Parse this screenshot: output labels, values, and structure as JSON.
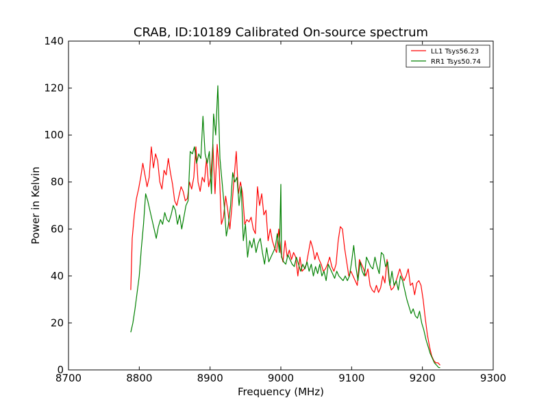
{
  "chart_data": {
    "type": "line",
    "title": "CRAB, ID:10189 Calibrated On-source spectrum",
    "xlabel": "Frequency (MHz)",
    "ylabel": "Power in Kelvin",
    "xlim": [
      8700,
      9300
    ],
    "ylim": [
      0,
      140
    ],
    "xticks": [
      8700,
      8800,
      8900,
      9000,
      9100,
      9200,
      9300
    ],
    "yticks": [
      0,
      20,
      40,
      60,
      80,
      100,
      120,
      140
    ],
    "grid": false,
    "legend_position": "top-right",
    "series": [
      {
        "name": "LL1 Tsys56.23",
        "color": "#ff0000",
        "points": [
          [
            8788,
            34
          ],
          [
            8790,
            56
          ],
          [
            8793,
            66
          ],
          [
            8796,
            73
          ],
          [
            8799,
            77
          ],
          [
            8802,
            82
          ],
          [
            8805,
            88
          ],
          [
            8808,
            83
          ],
          [
            8811,
            78
          ],
          [
            8814,
            82
          ],
          [
            8817,
            95
          ],
          [
            8820,
            86
          ],
          [
            8823,
            92
          ],
          [
            8826,
            89
          ],
          [
            8829,
            80
          ],
          [
            8832,
            77
          ],
          [
            8835,
            85
          ],
          [
            8838,
            83
          ],
          [
            8841,
            90
          ],
          [
            8844,
            84
          ],
          [
            8847,
            79
          ],
          [
            8850,
            72
          ],
          [
            8853,
            70
          ],
          [
            8856,
            74
          ],
          [
            8859,
            78
          ],
          [
            8862,
            76
          ],
          [
            8865,
            72
          ],
          [
            8868,
            73
          ],
          [
            8871,
            80
          ],
          [
            8874,
            77
          ],
          [
            8877,
            82
          ],
          [
            8880,
            95
          ],
          [
            8883,
            80
          ],
          [
            8886,
            76
          ],
          [
            8889,
            82
          ],
          [
            8892,
            80
          ],
          [
            8895,
            90
          ],
          [
            8898,
            78
          ],
          [
            8901,
            82
          ],
          [
            8904,
            96
          ],
          [
            8907,
            75
          ],
          [
            8910,
            96
          ],
          [
            8913,
            85
          ],
          [
            8916,
            62
          ],
          [
            8919,
            65
          ],
          [
            8922,
            74
          ],
          [
            8925,
            68
          ],
          [
            8928,
            60
          ],
          [
            8931,
            70
          ],
          [
            8934,
            82
          ],
          [
            8937,
            93
          ],
          [
            8940,
            75
          ],
          [
            8943,
            80
          ],
          [
            8946,
            75
          ],
          [
            8949,
            62
          ],
          [
            8952,
            64
          ],
          [
            8955,
            63
          ],
          [
            8958,
            65
          ],
          [
            8961,
            60
          ],
          [
            8964,
            58
          ],
          [
            8967,
            78
          ],
          [
            8970,
            70
          ],
          [
            8973,
            75
          ],
          [
            8976,
            66
          ],
          [
            8979,
            68
          ],
          [
            8982,
            55
          ],
          [
            8985,
            60
          ],
          [
            8988,
            55
          ],
          [
            8991,
            52
          ],
          [
            8994,
            50
          ],
          [
            8997,
            60
          ],
          [
            9000,
            50
          ],
          [
            9003,
            46
          ],
          [
            9006,
            55
          ],
          [
            9009,
            48
          ],
          [
            9012,
            51
          ],
          [
            9015,
            47
          ],
          [
            9018,
            50
          ],
          [
            9021,
            48
          ],
          [
            9024,
            40
          ],
          [
            9027,
            48
          ],
          [
            9030,
            42
          ],
          [
            9033,
            43
          ],
          [
            9036,
            45
          ],
          [
            9039,
            50
          ],
          [
            9042,
            55
          ],
          [
            9045,
            52
          ],
          [
            9048,
            47
          ],
          [
            9051,
            50
          ],
          [
            9054,
            47
          ],
          [
            9057,
            45
          ],
          [
            9060,
            42
          ],
          [
            9063,
            43
          ],
          [
            9066,
            45
          ],
          [
            9069,
            48
          ],
          [
            9072,
            44
          ],
          [
            9075,
            42
          ],
          [
            9078,
            45
          ],
          [
            9081,
            55
          ],
          [
            9084,
            61
          ],
          [
            9087,
            60
          ],
          [
            9090,
            52
          ],
          [
            9093,
            46
          ],
          [
            9096,
            40
          ],
          [
            9099,
            42
          ],
          [
            9102,
            40
          ],
          [
            9105,
            38
          ],
          [
            9108,
            36
          ],
          [
            9111,
            47
          ],
          [
            9114,
            45
          ],
          [
            9117,
            43
          ],
          [
            9120,
            40
          ],
          [
            9123,
            43
          ],
          [
            9126,
            36
          ],
          [
            9129,
            34
          ],
          [
            9132,
            33
          ],
          [
            9135,
            36
          ],
          [
            9138,
            33
          ],
          [
            9141,
            35
          ],
          [
            9144,
            40
          ],
          [
            9147,
            37
          ],
          [
            9150,
            47
          ],
          [
            9153,
            38
          ],
          [
            9156,
            34
          ],
          [
            9159,
            35
          ],
          [
            9162,
            37
          ],
          [
            9165,
            40
          ],
          [
            9168,
            43
          ],
          [
            9171,
            40
          ],
          [
            9174,
            38
          ],
          [
            9177,
            40
          ],
          [
            9180,
            43
          ],
          [
            9183,
            36
          ],
          [
            9186,
            37
          ],
          [
            9189,
            32
          ],
          [
            9192,
            37
          ],
          [
            9195,
            38
          ],
          [
            9198,
            36
          ],
          [
            9201,
            30
          ],
          [
            9204,
            22
          ],
          [
            9207,
            15
          ],
          [
            9210,
            10
          ],
          [
            9213,
            6
          ],
          [
            9216,
            4
          ],
          [
            9219,
            3
          ],
          [
            9222,
            3
          ],
          [
            9225,
            2
          ]
        ]
      },
      {
        "name": "RR1 Tsys50.74",
        "color": "#008000",
        "points": [
          [
            8788,
            16
          ],
          [
            8791,
            20
          ],
          [
            8794,
            26
          ],
          [
            8797,
            33
          ],
          [
            8800,
            40
          ],
          [
            8803,
            52
          ],
          [
            8806,
            62
          ],
          [
            8809,
            75
          ],
          [
            8812,
            72
          ],
          [
            8815,
            68
          ],
          [
            8818,
            64
          ],
          [
            8821,
            60
          ],
          [
            8824,
            56
          ],
          [
            8827,
            61
          ],
          [
            8830,
            64
          ],
          [
            8833,
            62
          ],
          [
            8836,
            67
          ],
          [
            8839,
            64
          ],
          [
            8842,
            63
          ],
          [
            8845,
            66
          ],
          [
            8848,
            70
          ],
          [
            8851,
            68
          ],
          [
            8854,
            62
          ],
          [
            8857,
            66
          ],
          [
            8860,
            60
          ],
          [
            8863,
            65
          ],
          [
            8866,
            70
          ],
          [
            8869,
            72
          ],
          [
            8872,
            93
          ],
          [
            8875,
            92
          ],
          [
            8878,
            95
          ],
          [
            8881,
            88
          ],
          [
            8884,
            92
          ],
          [
            8887,
            90
          ],
          [
            8890,
            108
          ],
          [
            8893,
            92
          ],
          [
            8896,
            88
          ],
          [
            8899,
            93
          ],
          [
            8902,
            75
          ],
          [
            8905,
            109
          ],
          [
            8908,
            100
          ],
          [
            8911,
            121
          ],
          [
            8914,
            90
          ],
          [
            8917,
            80
          ],
          [
            8920,
            70
          ],
          [
            8923,
            57
          ],
          [
            8926,
            62
          ],
          [
            8929,
            70
          ],
          [
            8932,
            84
          ],
          [
            8935,
            80
          ],
          [
            8938,
            82
          ],
          [
            8941,
            70
          ],
          [
            8944,
            78
          ],
          [
            8947,
            55
          ],
          [
            8950,
            62
          ],
          [
            8953,
            48
          ],
          [
            8956,
            55
          ],
          [
            8959,
            52
          ],
          [
            8962,
            56
          ],
          [
            8965,
            50
          ],
          [
            8968,
            54
          ],
          [
            8971,
            56
          ],
          [
            8974,
            50
          ],
          [
            8977,
            45
          ],
          [
            8980,
            52
          ],
          [
            8983,
            46
          ],
          [
            8986,
            48
          ],
          [
            8989,
            50
          ],
          [
            8992,
            52
          ],
          [
            8995,
            58
          ],
          [
            8998,
            50
          ],
          [
            9000,
            79
          ],
          [
            9001,
            48
          ],
          [
            9004,
            46
          ],
          [
            9007,
            45
          ],
          [
            9010,
            49
          ],
          [
            9013,
            47
          ],
          [
            9016,
            45
          ],
          [
            9019,
            44
          ],
          [
            9022,
            48
          ],
          [
            9025,
            45
          ],
          [
            9028,
            42
          ],
          [
            9031,
            45
          ],
          [
            9034,
            43
          ],
          [
            9037,
            46
          ],
          [
            9040,
            42
          ],
          [
            9043,
            45
          ],
          [
            9046,
            40
          ],
          [
            9049,
            44
          ],
          [
            9052,
            41
          ],
          [
            9055,
            45
          ],
          [
            9058,
            40
          ],
          [
            9061,
            42
          ],
          [
            9064,
            38
          ],
          [
            9067,
            45
          ],
          [
            9070,
            43
          ],
          [
            9073,
            41
          ],
          [
            9076,
            39
          ],
          [
            9079,
            42
          ],
          [
            9082,
            40
          ],
          [
            9085,
            39
          ],
          [
            9088,
            38
          ],
          [
            9091,
            40
          ],
          [
            9094,
            38
          ],
          [
            9097,
            40
          ],
          [
            9100,
            46
          ],
          [
            9103,
            53
          ],
          [
            9106,
            44
          ],
          [
            9109,
            38
          ],
          [
            9112,
            46
          ],
          [
            9115,
            42
          ],
          [
            9118,
            40
          ],
          [
            9121,
            48
          ],
          [
            9124,
            46
          ],
          [
            9127,
            44
          ],
          [
            9130,
            43
          ],
          [
            9133,
            48
          ],
          [
            9136,
            44
          ],
          [
            9139,
            41
          ],
          [
            9142,
            50
          ],
          [
            9145,
            49
          ],
          [
            9148,
            44
          ],
          [
            9151,
            46
          ],
          [
            9154,
            36
          ],
          [
            9157,
            42
          ],
          [
            9160,
            36
          ],
          [
            9163,
            38
          ],
          [
            9166,
            34
          ],
          [
            9169,
            40
          ],
          [
            9172,
            38
          ],
          [
            9175,
            34
          ],
          [
            9178,
            30
          ],
          [
            9181,
            27
          ],
          [
            9184,
            24
          ],
          [
            9187,
            26
          ],
          [
            9190,
            23
          ],
          [
            9193,
            22
          ],
          [
            9196,
            25
          ],
          [
            9199,
            20
          ],
          [
            9202,
            17
          ],
          [
            9205,
            13
          ],
          [
            9208,
            10
          ],
          [
            9211,
            7
          ],
          [
            9214,
            5
          ],
          [
            9217,
            3
          ],
          [
            9220,
            2
          ],
          [
            9223,
            1
          ],
          [
            9225,
            1
          ]
        ]
      }
    ]
  }
}
